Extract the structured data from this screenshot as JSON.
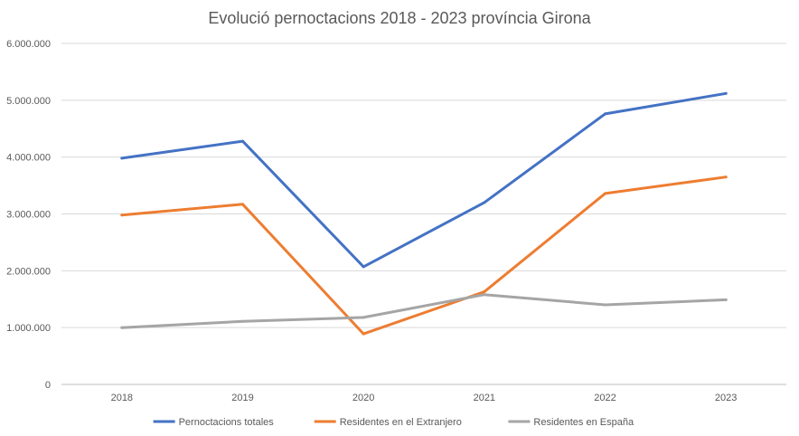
{
  "chart_data": {
    "type": "line",
    "title": "Evolució pernoctacions 2018 - 2023 província Girona",
    "xlabel": "",
    "ylabel": "",
    "categories": [
      "2018",
      "2019",
      "2020",
      "2021",
      "2022",
      "2023"
    ],
    "ylim": [
      0,
      6000000
    ],
    "yticks": [
      "0",
      "1.000.000",
      "2.000.000",
      "3.000.000",
      "4.000.000",
      "5.000.000",
      "6.000.000"
    ],
    "grid": true,
    "legend_position": "bottom",
    "series": [
      {
        "name": "Pernoctacions totales",
        "color": "#4472C4",
        "values": [
          3980000,
          4280000,
          2070000,
          3200000,
          4760000,
          5120000
        ]
      },
      {
        "name": "Residentes en el Extranjero",
        "color": "#ED7D31",
        "values": [
          2980000,
          3170000,
          890000,
          1630000,
          3360000,
          3650000
        ]
      },
      {
        "name": "Residentes en España",
        "color": "#A5A5A5",
        "values": [
          1000000,
          1110000,
          1180000,
          1580000,
          1400000,
          1490000
        ]
      }
    ]
  }
}
